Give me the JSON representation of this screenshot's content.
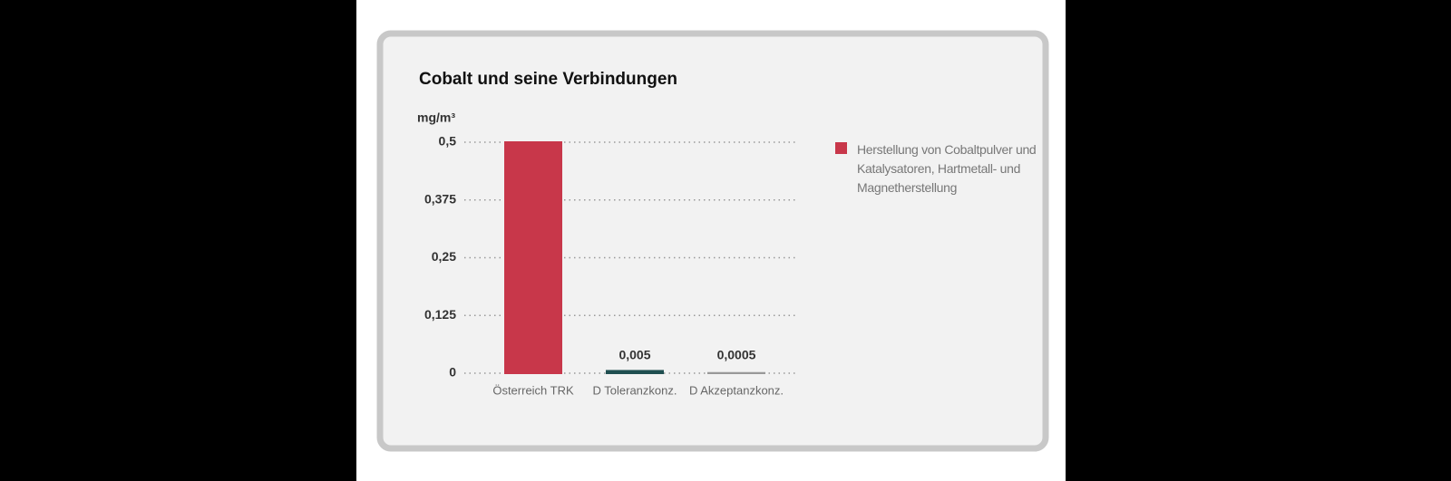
{
  "chart_data": {
    "type": "bar",
    "title": "Cobalt und seine Verbindungen",
    "y_label": "mg/m³",
    "categories": [
      "Österreich TRK",
      "D Toleranzkonz.",
      "D Akzeptanzkonz."
    ],
    "values": [
      0.5,
      0.005,
      0.0005
    ],
    "value_labels": [
      null,
      "0,005",
      "0,0005"
    ],
    "colors": [
      "#c8374a",
      "#1f4e50",
      "#999999"
    ],
    "legend": {
      "name": "Herstellung von Cobaltpulver und Katalysatoren, Hartmetall- und Magnetherstellung",
      "color": "#c8374a",
      "position": "right"
    },
    "ylim": [
      0,
      0.5
    ],
    "yticks": [
      0,
      {
        "value": 0.125,
        "label": "0,125"
      },
      {
        "value": 0.25,
        "label": "0,25"
      },
      {
        "value": 0.375,
        "label": "0,375"
      },
      {
        "value": 0.5,
        "label": "0,5"
      }
    ],
    "grid": true
  }
}
